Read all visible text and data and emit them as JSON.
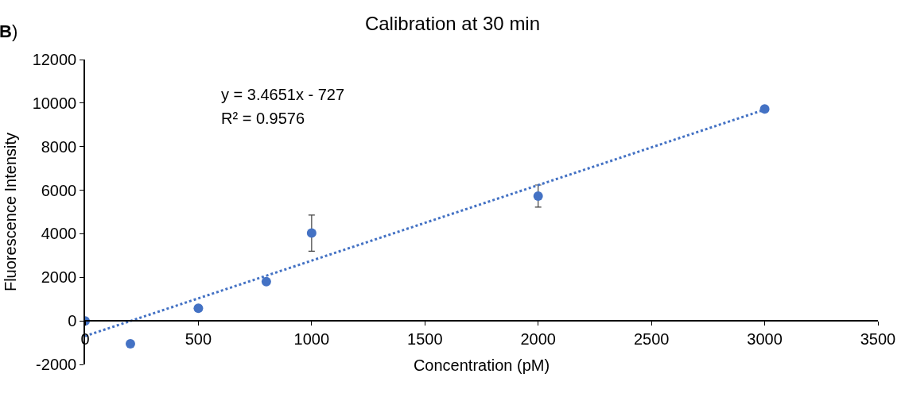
{
  "chart_data": {
    "type": "scatter",
    "title": "Calibration at 30 min",
    "xlabel": "Concentration (pM)",
    "ylabel": "Fluorescence Intensity",
    "annotations": [
      "B)",
      "y = 3.4651x - 727",
      "R² = 0.9576"
    ],
    "x": [
      0,
      200,
      500,
      800,
      1000,
      2000,
      3000
    ],
    "series": [
      {
        "type": "scatter",
        "color": "#4472c4",
        "values": [
          0,
          -1050,
          580,
          1800,
          4030,
          5730,
          9730
        ],
        "errors": [
          null,
          null,
          null,
          null,
          830,
          510,
          null
        ],
        "marker": "circle"
      },
      {
        "type": "line",
        "color": "#4472c4",
        "x": [
          0,
          3000
        ],
        "values": [
          -700,
          9700
        ],
        "line_style": "dotted",
        "marker": "none"
      }
    ],
    "xlim": [
      0,
      3500
    ],
    "xticks": [
      0,
      500,
      1000,
      1500,
      2000,
      2500,
      3000,
      3500
    ],
    "ylim": [
      -2000,
      12000
    ],
    "yticks": [
      -2000,
      0,
      2000,
      4000,
      6000,
      8000,
      10000,
      12000
    ],
    "grid": false,
    "legend": false
  }
}
